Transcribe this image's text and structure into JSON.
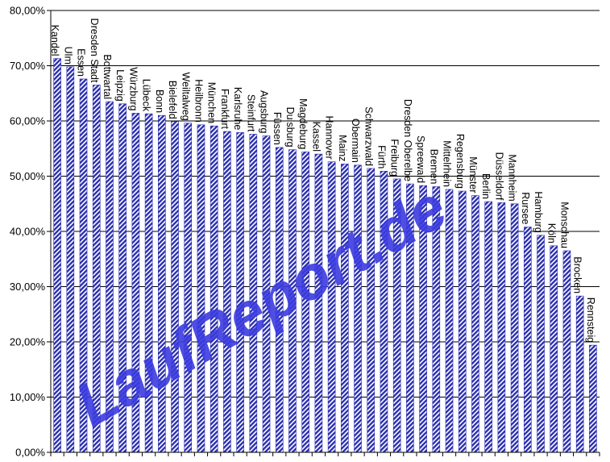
{
  "chart_data": {
    "type": "bar",
    "title": "",
    "xlabel": "",
    "ylabel": "",
    "ylim": [
      0,
      80
    ],
    "yticks": [
      0,
      10,
      20,
      30,
      40,
      50,
      60,
      70,
      80
    ],
    "ytick_labels": [
      "0,00%",
      "10,00%",
      "20,00%",
      "30,00%",
      "40,00%",
      "50,00%",
      "60,00%",
      "70,00%",
      "80,00%"
    ],
    "grid": true,
    "legend": "none",
    "bar_color": "#2b2fb0",
    "bar_pattern": "diagonal-hatch",
    "categories": [
      "Kandel",
      "Ulm",
      "Essen",
      "Dresden Stadt",
      "Bottwartal",
      "Leipzig",
      "Würzburg",
      "Lübeck",
      "Bonn",
      "Bielefeld",
      "Weiltalweg",
      "Heilbronn",
      "München",
      "Frankfurt",
      "Karlsruhe",
      "Steinfurt",
      "Augsburg",
      "Füssen",
      "Duisburg",
      "Magdeburg",
      "Kassel",
      "Hannover",
      "Mainz",
      "Obermain",
      "Schwarzwald",
      "Fürth",
      "Freiburg",
      "Dresden Oberelbe",
      "Spreewald",
      "Bremen",
      "Mittelrhein",
      "Regensburg",
      "Münster",
      "Berlin",
      "Düsseldorf",
      "Mannheim",
      "Rursee",
      "Hamburg",
      "Köln",
      "Monschau",
      "Brocken",
      "Rennsteig"
    ],
    "values": [
      71.3,
      69.8,
      67.6,
      66.5,
      63.5,
      63.1,
      61.4,
      61.3,
      61.0,
      59.9,
      59.6,
      59.3,
      59.1,
      58.1,
      57.9,
      57.6,
      57.3,
      55.2,
      54.8,
      54.4,
      54.0,
      52.6,
      52.2,
      52.0,
      51.4,
      50.9,
      49.5,
      48.6,
      48.3,
      48.1,
      47.6,
      47.3,
      46.5,
      45.4,
      45.2,
      45.0,
      40.8,
      39.3,
      37.4,
      36.5,
      28.3,
      19.4
    ]
  },
  "watermark": {
    "text": "LaufReport.de",
    "color": "#3b3bdf"
  }
}
